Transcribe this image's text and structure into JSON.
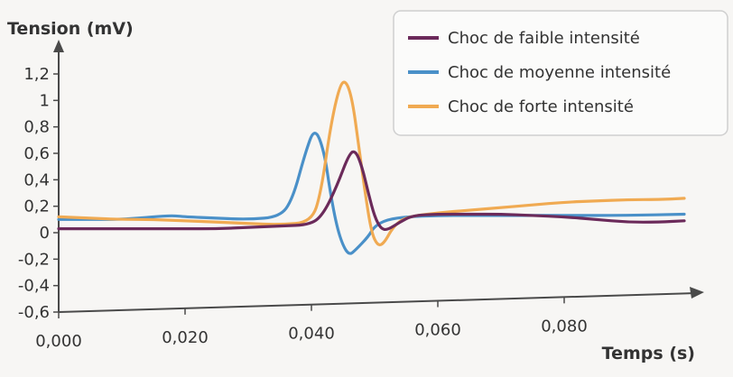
{
  "chart_data": {
    "type": "line",
    "ylabel": "Tension (mV)",
    "xlabel": "Temps (s)",
    "xlim": [
      0,
      0.1
    ],
    "ylim": [
      -0.6,
      1.35
    ],
    "x_ticks": [
      "0,000",
      "0,020",
      "0,040",
      "0,060",
      "0,080"
    ],
    "x_tick_values": [
      0,
      0.02,
      0.04,
      0.06,
      0.08
    ],
    "y_ticks": [
      "1,2",
      "1",
      "0,8",
      "0,6",
      "0,4",
      "0,2",
      "0",
      "-0,2",
      "-0,4",
      "-0,6"
    ],
    "y_tick_values": [
      1.2,
      1.0,
      0.8,
      0.6,
      0.4,
      0.2,
      0,
      -0.2,
      -0.4,
      -0.6
    ],
    "grid": false,
    "legend_position": "top-right",
    "series": [
      {
        "name": "Choc de faible intensité",
        "color": "#6b2a5a",
        "points": [
          [
            0,
            0.03
          ],
          [
            0.005,
            0.03
          ],
          [
            0.01,
            0.03
          ],
          [
            0.015,
            0.03
          ],
          [
            0.02,
            0.03
          ],
          [
            0.025,
            0.03
          ],
          [
            0.03,
            0.04
          ],
          [
            0.035,
            0.05
          ],
          [
            0.04,
            0.06
          ],
          [
            0.042,
            0.15
          ],
          [
            0.044,
            0.35
          ],
          [
            0.046,
            0.6
          ],
          [
            0.047,
            0.62
          ],
          [
            0.048,
            0.5
          ],
          [
            0.049,
            0.3
          ],
          [
            0.05,
            0.12
          ],
          [
            0.051,
            0.03
          ],
          [
            0.052,
            0.02
          ],
          [
            0.054,
            0.08
          ],
          [
            0.056,
            0.13
          ],
          [
            0.06,
            0.14
          ],
          [
            0.065,
            0.14
          ],
          [
            0.07,
            0.14
          ],
          [
            0.075,
            0.13
          ],
          [
            0.08,
            0.12
          ],
          [
            0.085,
            0.1
          ],
          [
            0.09,
            0.08
          ],
          [
            0.095,
            0.08
          ],
          [
            0.099,
            0.09
          ]
        ]
      },
      {
        "name": "Choc de moyenne intensité",
        "color": "#4a90c8",
        "points": [
          [
            0,
            0.1
          ],
          [
            0.005,
            0.1
          ],
          [
            0.01,
            0.1
          ],
          [
            0.015,
            0.12
          ],
          [
            0.018,
            0.13
          ],
          [
            0.02,
            0.12
          ],
          [
            0.025,
            0.11
          ],
          [
            0.03,
            0.1
          ],
          [
            0.035,
            0.12
          ],
          [
            0.037,
            0.25
          ],
          [
            0.039,
            0.6
          ],
          [
            0.0405,
            0.8
          ],
          [
            0.042,
            0.62
          ],
          [
            0.043,
            0.3
          ],
          [
            0.044,
            0.05
          ],
          [
            0.045,
            -0.1
          ],
          [
            0.046,
            -0.17
          ],
          [
            0.047,
            -0.13
          ],
          [
            0.049,
            -0.03
          ],
          [
            0.05,
            0.05
          ],
          [
            0.052,
            0.1
          ],
          [
            0.055,
            0.12
          ],
          [
            0.06,
            0.13
          ],
          [
            0.065,
            0.13
          ],
          [
            0.07,
            0.13
          ],
          [
            0.08,
            0.13
          ],
          [
            0.09,
            0.13
          ],
          [
            0.099,
            0.14
          ]
        ]
      },
      {
        "name": "Choc de forte intensité",
        "color": "#f0aa52",
        "points": [
          [
            0,
            0.12
          ],
          [
            0.005,
            0.11
          ],
          [
            0.01,
            0.1
          ],
          [
            0.015,
            0.1
          ],
          [
            0.02,
            0.09
          ],
          [
            0.025,
            0.08
          ],
          [
            0.03,
            0.07
          ],
          [
            0.035,
            0.06
          ],
          [
            0.04,
            0.08
          ],
          [
            0.0415,
            0.3
          ],
          [
            0.043,
            0.8
          ],
          [
            0.0445,
            1.12
          ],
          [
            0.0455,
            1.15
          ],
          [
            0.0465,
            1.0
          ],
          [
            0.0475,
            0.65
          ],
          [
            0.0485,
            0.3
          ],
          [
            0.0495,
            0.0
          ],
          [
            0.0505,
            -0.1
          ],
          [
            0.0515,
            -0.08
          ],
          [
            0.053,
            0.05
          ],
          [
            0.055,
            0.12
          ],
          [
            0.06,
            0.15
          ],
          [
            0.065,
            0.17
          ],
          [
            0.07,
            0.19
          ],
          [
            0.075,
            0.21
          ],
          [
            0.08,
            0.23
          ],
          [
            0.085,
            0.24
          ],
          [
            0.09,
            0.25
          ],
          [
            0.095,
            0.25
          ],
          [
            0.099,
            0.26
          ]
        ]
      }
    ]
  }
}
